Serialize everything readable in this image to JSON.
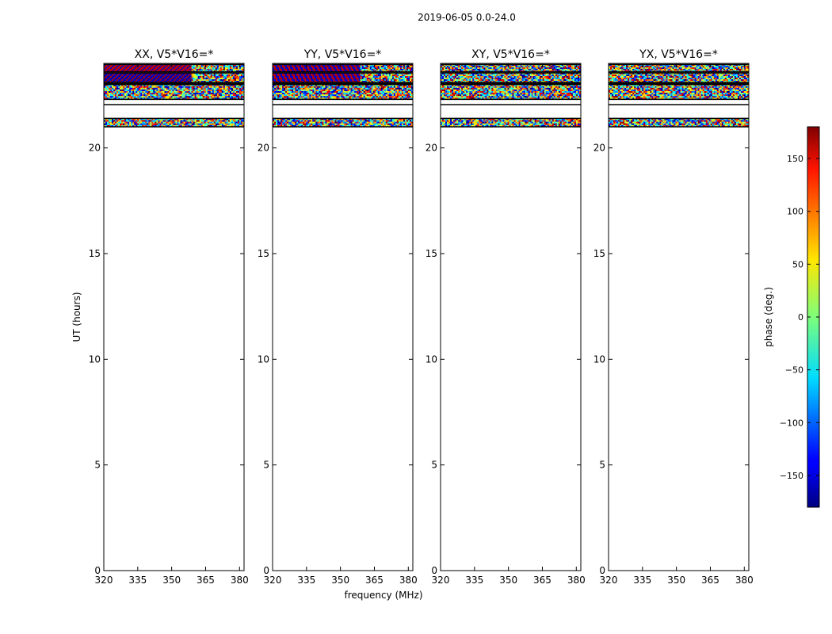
{
  "chart_data": {
    "type": "heatmap",
    "title": "2019-06-05 0.0-24.0",
    "xlabel": "frequency (MHz)",
    "ylabel": "UT (hours)",
    "xlim": [
      320,
      382
    ],
    "ylim": [
      0,
      24
    ],
    "xticks": [
      "320",
      "335",
      "350",
      "365",
      "380"
    ],
    "yticks": [
      "0",
      "5",
      "10",
      "15",
      "20"
    ],
    "panels": [
      {
        "title": "XX, V5*V16=*"
      },
      {
        "title": "YY, V5*V16=*"
      },
      {
        "title": "XY, V5*V16=*"
      },
      {
        "title": "YX, V5*V16=*"
      }
    ],
    "data_bands_ut": [
      {
        "from": 23.6,
        "to": 23.95,
        "pattern": "parallel"
      },
      {
        "from": 23.1,
        "to": 23.55,
        "pattern": "parallel"
      },
      {
        "from": 22.3,
        "to": 23.0,
        "pattern": "noise"
      },
      {
        "from": 21.0,
        "to": 21.4,
        "pattern": "noise"
      }
    ],
    "colorbar": {
      "label": "phase (deg.)",
      "range": [
        -180,
        180
      ],
      "ticks": [
        "150",
        "100",
        "50",
        "0",
        "−50",
        "−100",
        "−150"
      ],
      "colormap": "jet"
    }
  }
}
